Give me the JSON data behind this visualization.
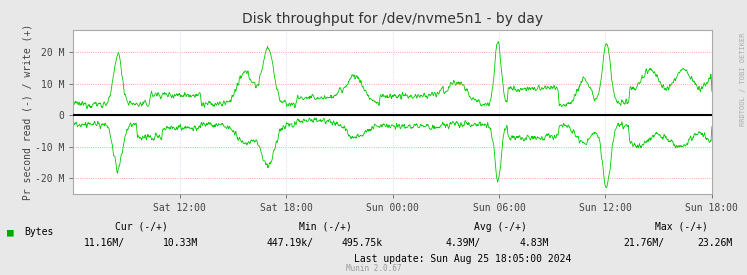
{
  "title": "Disk throughput for /dev/nvme5n1 - by day",
  "ylabel": "Pr second read (-) / write (+)",
  "background_color": "#E8E8E8",
  "plot_bg_color": "#FFFFFF",
  "grid_color_h": "#FF8888",
  "grid_color_v": "#CCCCFF",
  "line_color": "#00CC00",
  "zero_line_color": "#000000",
  "border_color": "#AAAAAA",
  "ylim": [
    -25000000,
    27000000
  ],
  "yticks": [
    -20000000,
    -10000000,
    0,
    10000000,
    20000000
  ],
  "ytick_labels": [
    "-20 M",
    "-10 M",
    "0",
    "10 M",
    "20 M"
  ],
  "xtick_labels": [
    "Sat 12:00",
    "Sat 18:00",
    "Sun 00:00",
    "Sun 06:00",
    "Sun 12:00",
    "Sun 18:00"
  ],
  "legend_label": "Bytes",
  "legend_color": "#00AA00",
  "footer_munin": "Munin 2.0.67",
  "watermark": "RRDTOOL / TOBI OETIKER",
  "title_fontsize": 10,
  "axis_fontsize": 7,
  "footer_fontsize": 7,
  "footer_line1": [
    "Cur (-/+)",
    "Min (-/+)",
    "Avg (-/+)",
    "Max (-/+)"
  ],
  "footer_line2_cur": [
    "11.16M/",
    "10.33M"
  ],
  "footer_line2_min": [
    "447.19k/",
    "495.75k"
  ],
  "footer_line2_avg": [
    "4.39M/",
    "4.83M"
  ],
  "footer_line2_max": [
    "21.76M/",
    "23.26M"
  ],
  "footer_update": "Last update: Sun Aug 25 18:05:00 2024"
}
